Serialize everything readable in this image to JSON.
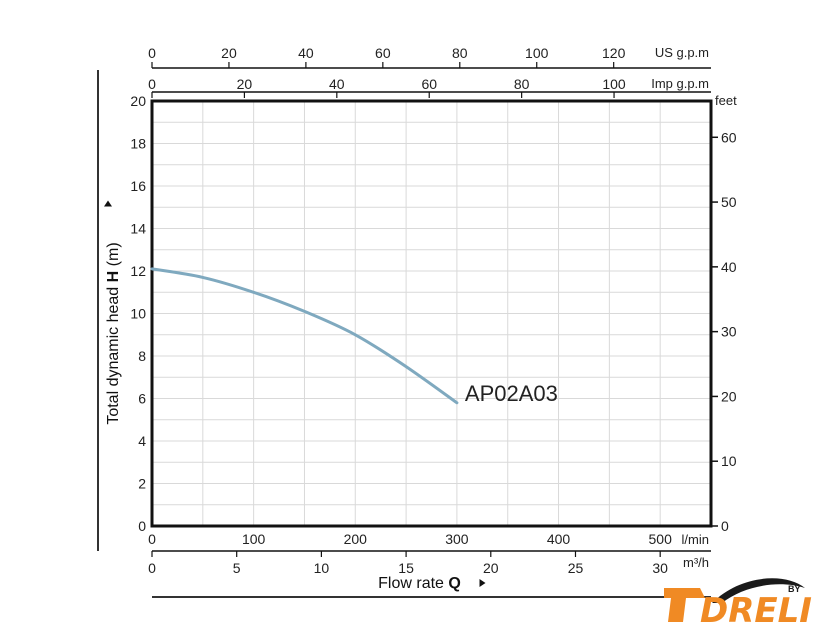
{
  "chart_data": {
    "type": "line",
    "series": [
      {
        "name": "AP02A03",
        "x": [
          0,
          50,
          100,
          150,
          200,
          250,
          300
        ],
        "y": [
          12.1,
          11.7,
          11.0,
          10.1,
          9.0,
          7.5,
          5.8
        ]
      }
    ],
    "y_left": {
      "label_prefix": "Total dynamic head ",
      "label_bold": "H",
      "label_suffix": " (m)",
      "range": [
        0,
        20
      ],
      "ticks": [
        "0",
        "2",
        "4",
        "6",
        "8",
        "10",
        "12",
        "14",
        "16",
        "18",
        "20"
      ]
    },
    "y_right": {
      "unit": "feet",
      "range_ft": [
        0,
        65.6
      ],
      "ticks": [
        "0",
        "10",
        "20",
        "30",
        "40",
        "50",
        "60"
      ]
    },
    "x_bottom_lmin": {
      "unit": "l/min",
      "range": [
        0,
        550
      ],
      "ticks": [
        "0",
        "100",
        "200",
        "300",
        "400",
        "500"
      ]
    },
    "x_bottom_m3h": {
      "unit": "m³/h",
      "ticks": [
        "0",
        "5",
        "10",
        "15",
        "20",
        "25",
        "30"
      ]
    },
    "x_top_us": {
      "unit": "US g.p.m",
      "ticks": [
        "0",
        "20",
        "40",
        "60",
        "80",
        "100",
        "120"
      ]
    },
    "x_top_imp": {
      "unit": "Imp g.p.m",
      "ticks": [
        "0",
        "20",
        "40",
        "60",
        "80",
        "100"
      ]
    },
    "x_title_prefix": "Flow rate ",
    "x_title_bold": "Q",
    "grid": true,
    "colors": {
      "curve": "#7fa9bf",
      "grid": "#d9d9d9",
      "frame": "#111111",
      "logo_orange": "#f08a24",
      "logo_dark": "#1a1a1a"
    }
  },
  "logo": {
    "text": "DRELI",
    "by": "BY"
  }
}
